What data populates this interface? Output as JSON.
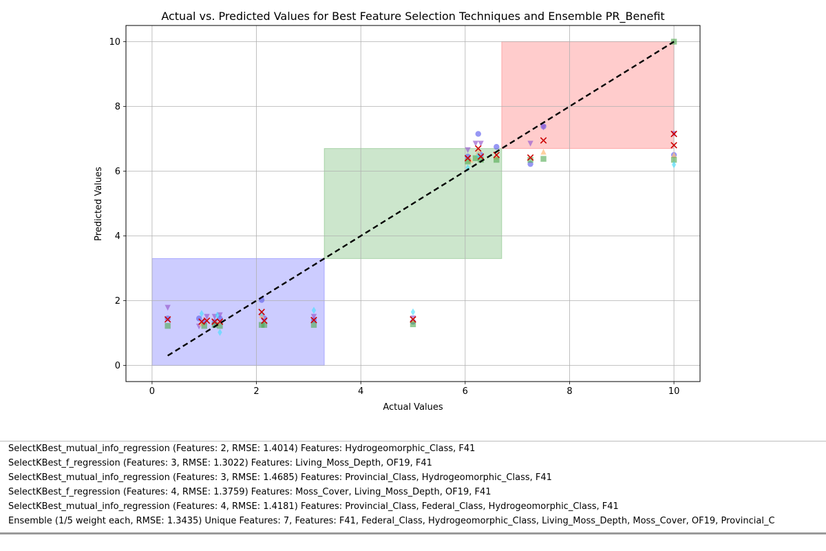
{
  "chart_data": {
    "type": "scatter",
    "title": "Actual vs. Predicted Values for Best Feature Selection Techniques and Ensemble PR_Benefit",
    "xlabel": "Actual Values",
    "ylabel": "Predicted Values",
    "xlim": [
      -0.5,
      10.5
    ],
    "ylim": [
      -0.5,
      10.5
    ],
    "xticks": [
      "0",
      "2",
      "4",
      "6",
      "8",
      "10"
    ],
    "yticks": [
      "0",
      "2",
      "4",
      "6",
      "8",
      "10"
    ],
    "grid": true,
    "regions": [
      {
        "x": [
          0,
          3.3
        ],
        "y": [
          0,
          3.3
        ],
        "color": "#0000ff"
      },
      {
        "x": [
          3.3,
          6.7
        ],
        "y": [
          3.3,
          6.7
        ],
        "color": "#008000"
      },
      {
        "x": [
          6.7,
          10
        ],
        "y": [
          6.7,
          10
        ],
        "color": "#ff0000"
      }
    ],
    "identity_line": {
      "x": [
        0.3,
        10
      ],
      "y": [
        0.3,
        10
      ],
      "color": "#000000",
      "style": "dashed"
    },
    "series": [
      {
        "marker": "circle",
        "color": "#6b6bf0",
        "x": [
          0.3,
          0.9,
          1.0,
          1.2,
          1.3,
          2.1,
          2.15,
          3.1,
          5.0,
          6.05,
          6.25,
          6.3,
          6.6,
          7.25,
          7.5,
          10.0
        ],
        "y": [
          1.45,
          1.45,
          1.35,
          1.35,
          1.45,
          2.02,
          1.45,
          1.4,
          1.35,
          6.45,
          7.15,
          6.5,
          6.75,
          6.22,
          7.38,
          6.5
        ]
      },
      {
        "marker": "triangle-down",
        "color": "#9a5fd0",
        "x": [
          0.3,
          0.9,
          1.05,
          1.2,
          1.3,
          2.1,
          3.1,
          5.0,
          6.05,
          6.2,
          6.3,
          7.25,
          7.5,
          10.0
        ],
        "y": [
          1.78,
          1.2,
          1.5,
          1.5,
          1.55,
          1.5,
          1.5,
          1.45,
          6.65,
          6.85,
          6.85,
          6.85,
          7.35,
          7.15
        ]
      },
      {
        "marker": "triangle-up",
        "color": "#ffbf7f",
        "x": [
          0.95,
          1.25,
          2.1,
          5.0,
          6.1,
          6.25,
          6.6,
          7.5,
          10.0
        ],
        "y": [
          1.3,
          1.3,
          1.55,
          1.4,
          6.35,
          6.6,
          6.45,
          6.6,
          6.5
        ]
      },
      {
        "marker": "square",
        "color": "#4fa84f",
        "x": [
          0.3,
          1.0,
          1.2,
          1.3,
          2.1,
          2.15,
          3.1,
          5.0,
          6.05,
          6.2,
          6.3,
          6.6,
          7.25,
          7.5,
          10.0,
          10.0
        ],
        "y": [
          1.22,
          1.22,
          1.25,
          1.22,
          1.25,
          1.25,
          1.25,
          1.27,
          6.3,
          6.4,
          6.35,
          6.35,
          6.35,
          6.38,
          10.0,
          6.35
        ]
      },
      {
        "marker": "diamond",
        "color": "#40e0ff",
        "x": [
          0.95,
          1.25,
          1.3,
          2.1,
          3.1,
          5.0,
          6.05,
          6.25,
          10.0
        ],
        "y": [
          1.6,
          1.55,
          1.02,
          1.6,
          1.7,
          1.65,
          6.1,
          6.5,
          6.2
        ]
      },
      {
        "marker": "x",
        "color": "#cc0000",
        "x": [
          0.3,
          0.95,
          1.05,
          1.2,
          1.3,
          2.1,
          2.15,
          3.1,
          5.0,
          6.05,
          6.25,
          6.3,
          6.6,
          7.25,
          7.5,
          10.0,
          10.0
        ],
        "y": [
          1.42,
          1.35,
          1.38,
          1.35,
          1.35,
          1.65,
          1.38,
          1.4,
          1.42,
          6.4,
          6.7,
          6.45,
          6.5,
          6.42,
          6.95,
          7.15,
          6.8
        ]
      }
    ]
  },
  "legend": {
    "lines": [
      "SelectKBest_mutual_info_regression (Features: 2, RMSE: 1.4014) Features: Hydrogeomorphic_Class, F41",
      "SelectKBest_f_regression (Features: 3, RMSE: 1.3022) Features: Living_Moss_Depth, OF19, F41",
      "SelectKBest_mutual_info_regression (Features: 3, RMSE: 1.4685) Features: Provincial_Class, Hydrogeomorphic_Class, F41",
      "SelectKBest_f_regression (Features: 4, RMSE: 1.3759) Features: Moss_Cover, Living_Moss_Depth, OF19, F41",
      "SelectKBest_mutual_info_regression (Features: 4, RMSE: 1.4181) Features: Provincial_Class, Federal_Class, Hydrogeomorphic_Class, F41",
      "Ensemble (1/5 weight each, RMSE: 1.3435) Unique Features: 7, Features: F41, Federal_Class, Hydrogeomorphic_Class, Living_Moss_Depth, Moss_Cover, OF19, Provincial_C"
    ]
  }
}
